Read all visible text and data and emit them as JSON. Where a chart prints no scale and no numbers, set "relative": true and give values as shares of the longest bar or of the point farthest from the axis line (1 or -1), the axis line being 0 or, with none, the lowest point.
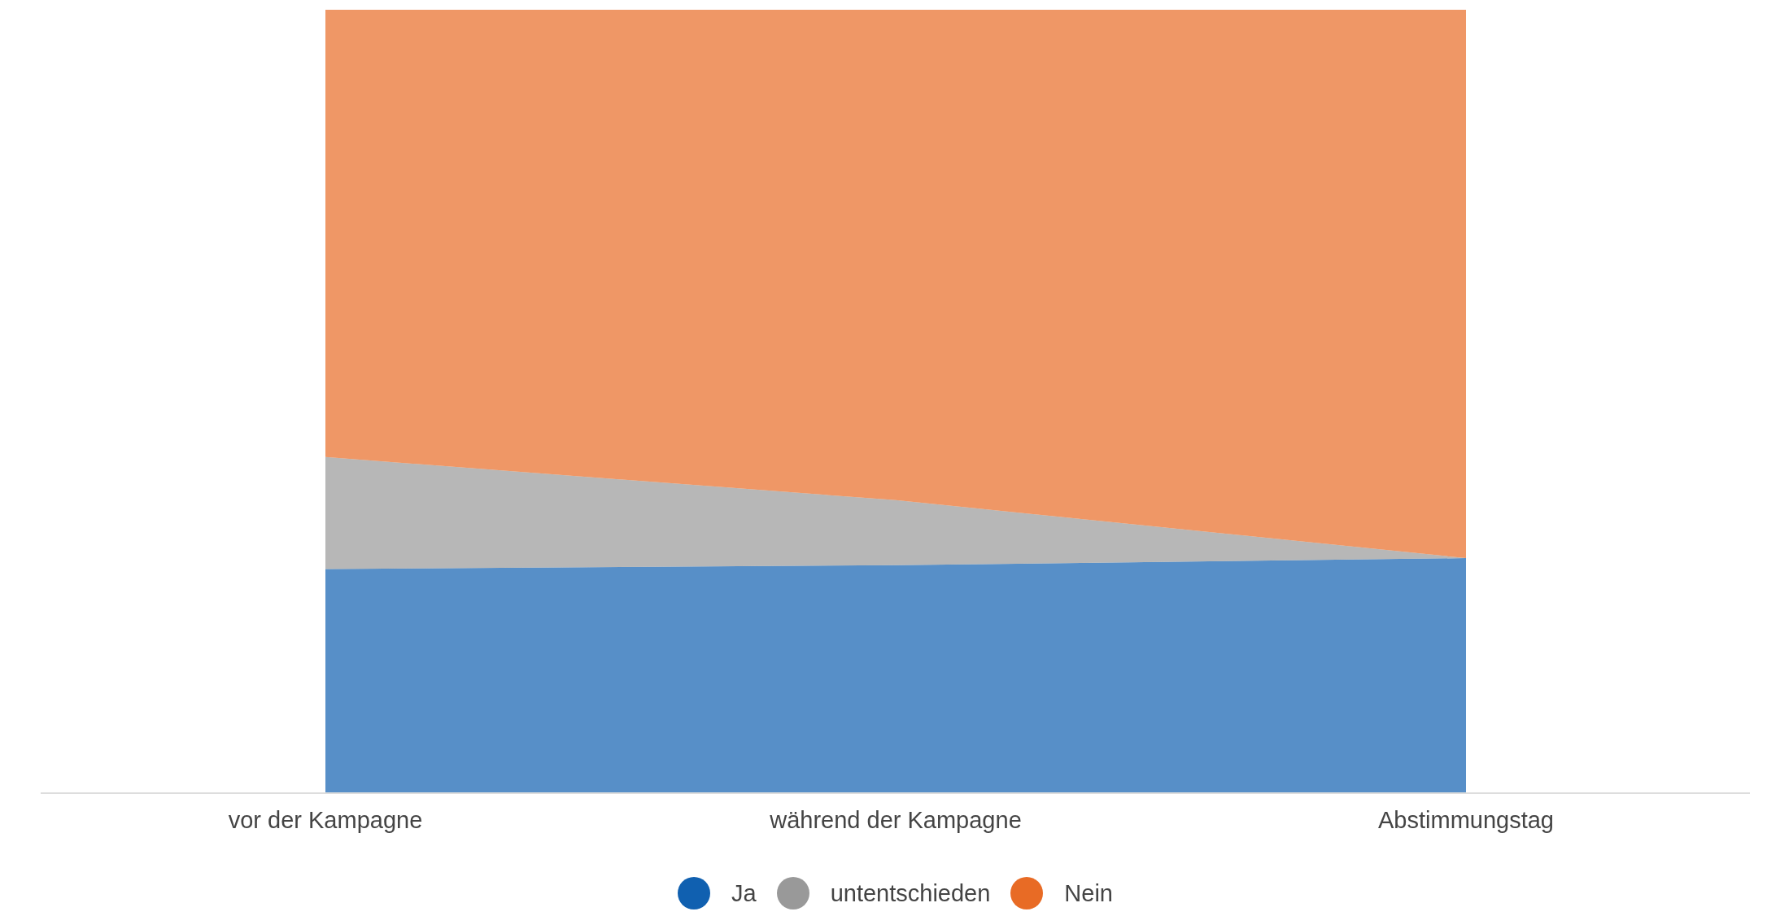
{
  "chart_data": {
    "type": "area",
    "stacked": true,
    "relative": true,
    "categories": [
      "vor der Kampagne",
      "während der Kampagne",
      "Abstimmungstag"
    ],
    "series": [
      {
        "name": "Ja",
        "color": "#1060b0",
        "values": [
          0.286,
          0.291,
          0.3
        ]
      },
      {
        "name": "untentschieden",
        "color": "#999999",
        "values": [
          0.143,
          0.083,
          0
        ]
      },
      {
        "name": "Nein",
        "color": "#e86b25",
        "values": [
          0.571,
          0.626,
          0.7
        ]
      }
    ],
    "legend": "bottom"
  }
}
